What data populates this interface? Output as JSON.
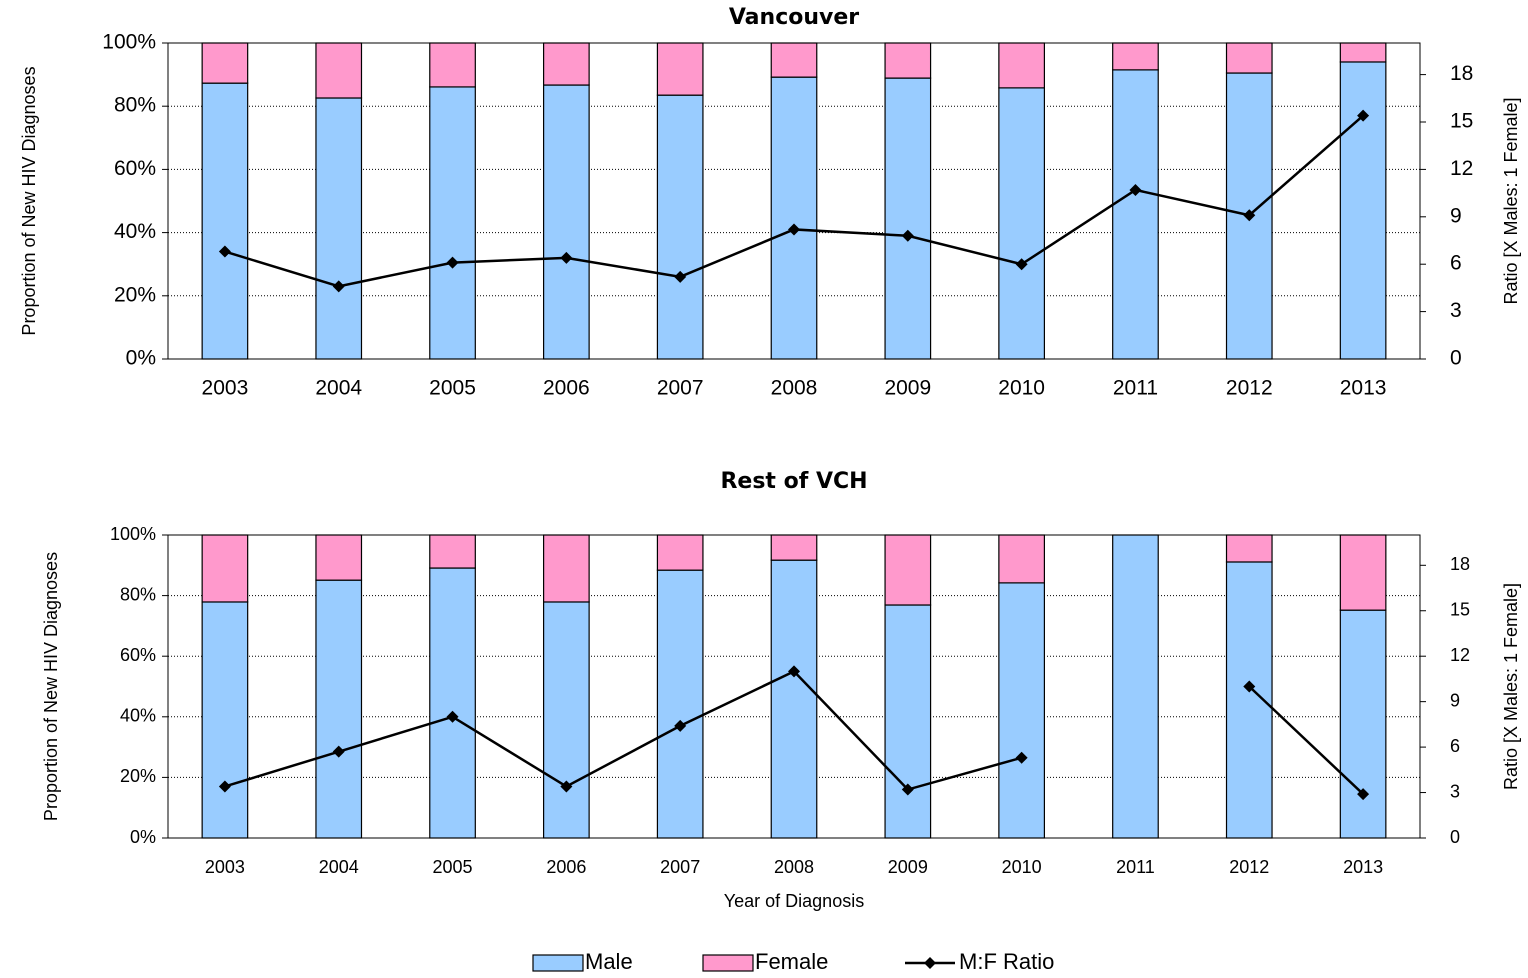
{
  "chart_data": [
    {
      "type": "bar-line",
      "title": "Vancouver",
      "y_label": "Proportion of New HIV Diagnoses",
      "y2_label": "Ratio [X Males: 1 Female]",
      "categories": [
        "2003",
        "2004",
        "2005",
        "2006",
        "2007",
        "2008",
        "2009",
        "2010",
        "2011",
        "2012",
        "2013"
      ],
      "series": [
        {
          "name": "Male",
          "color": "#99ccff",
          "values": [
            87.3,
            82.6,
            86.1,
            86.7,
            83.5,
            89.2,
            88.9,
            85.8,
            91.5,
            90.5,
            94.0
          ]
        },
        {
          "name": "Female",
          "color": "#ff99cc",
          "values": [
            12.7,
            17.4,
            13.9,
            13.3,
            16.5,
            10.8,
            11.1,
            14.2,
            8.5,
            9.5,
            6.0
          ]
        },
        {
          "name": "M:F Ratio",
          "color": "#000000",
          "axis": "y2",
          "values": [
            6.8,
            4.6,
            6.1,
            6.4,
            5.2,
            8.2,
            7.8,
            6.0,
            10.7,
            9.1,
            15.4
          ]
        }
      ],
      "ylim": [
        0,
        100
      ],
      "yticks": [
        {
          "value": 0,
          "label": "0%"
        },
        {
          "value": 20,
          "label": "20%"
        },
        {
          "value": 40,
          "label": "40%"
        },
        {
          "value": 60,
          "label": "60%"
        },
        {
          "value": 80,
          "label": "80%"
        },
        {
          "value": 100,
          "label": "100%"
        }
      ],
      "y2lim": [
        0,
        20
      ],
      "y2ticks": [
        0,
        3,
        6,
        9,
        12,
        15,
        18
      ],
      "grid": true
    },
    {
      "type": "bar-line",
      "title": "Rest of VCH",
      "y_label": "Proportion of New HIV Diagnoses",
      "y2_label": "Ratio [X Males: 1 Female]",
      "x_label": "Year of Diagnosis",
      "categories": [
        "2003",
        "2004",
        "2005",
        "2006",
        "2007",
        "2008",
        "2009",
        "2010",
        "2011",
        "2012",
        "2013"
      ],
      "series": [
        {
          "name": "Male",
          "color": "#99ccff",
          "values": [
            77.9,
            85.1,
            89.1,
            77.9,
            88.4,
            91.7,
            76.9,
            84.2,
            100,
            91.1,
            75.2
          ]
        },
        {
          "name": "Female",
          "color": "#ff99cc",
          "values": [
            22.1,
            14.9,
            10.9,
            22.1,
            11.6,
            8.3,
            23.1,
            15.8,
            0,
            8.9,
            24.8
          ]
        },
        {
          "name": "M:F Ratio",
          "color": "#000000",
          "axis": "y2",
          "values": [
            3.4,
            5.7,
            8.0,
            3.4,
            7.4,
            11.0,
            3.2,
            5.3,
            null,
            10.0,
            2.9
          ]
        }
      ],
      "ylim": [
        0,
        100
      ],
      "yticks": [
        {
          "value": 0,
          "label": "0%"
        },
        {
          "value": 20,
          "label": "20%"
        },
        {
          "value": 40,
          "label": "40%"
        },
        {
          "value": 60,
          "label": "60%"
        },
        {
          "value": 80,
          "label": "80%"
        },
        {
          "value": 100,
          "label": "100%"
        }
      ],
      "y2lim": [
        0,
        20
      ],
      "y2ticks": [
        0,
        3,
        6,
        9,
        12,
        15,
        18
      ],
      "grid": true
    }
  ]
}
